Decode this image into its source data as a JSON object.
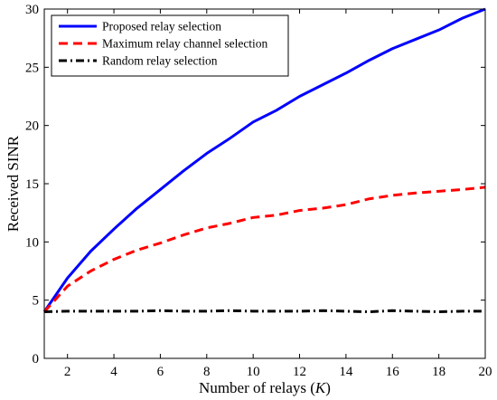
{
  "chart_data": {
    "type": "line",
    "xlabel": "Number of relays (K)",
    "xlabel_main": "Number of relays (",
    "xlabel_var": "K",
    "xlabel_close": ")",
    "ylabel": "Received SINR",
    "xlim": [
      1,
      20
    ],
    "ylim": [
      0,
      30
    ],
    "x_ticks": [
      2,
      4,
      6,
      8,
      10,
      12,
      14,
      16,
      18,
      20
    ],
    "y_ticks": [
      0,
      5,
      10,
      15,
      20,
      25,
      30
    ],
    "grid": false,
    "legend_position": "top-left",
    "x": [
      1,
      2,
      3,
      4,
      5,
      6,
      7,
      8,
      9,
      10,
      11,
      12,
      13,
      14,
      15,
      16,
      17,
      18,
      19,
      20
    ],
    "series": [
      {
        "name": "Proposed relay selection",
        "color": "#0000ff",
        "style": "solid",
        "values": [
          4.0,
          6.9,
          9.2,
          11.1,
          12.9,
          14.5,
          16.1,
          17.6,
          18.9,
          20.3,
          21.3,
          22.5,
          23.5,
          24.5,
          25.6,
          26.6,
          27.4,
          28.2,
          29.2,
          30.0
        ]
      },
      {
        "name": "Maximum relay channel selection",
        "color": "#ff0000",
        "style": "dashed",
        "values": [
          4.0,
          6.2,
          7.5,
          8.5,
          9.3,
          9.9,
          10.6,
          11.2,
          11.6,
          12.1,
          12.3,
          12.7,
          12.9,
          13.2,
          13.7,
          14.0,
          14.2,
          14.35,
          14.5,
          14.7
        ]
      },
      {
        "name": "Random relay selection",
        "color": "#000000",
        "style": "dashdot",
        "values": [
          4.0,
          4.05,
          4.05,
          4.05,
          4.05,
          4.1,
          4.05,
          4.05,
          4.1,
          4.05,
          4.05,
          4.05,
          4.1,
          4.05,
          4.0,
          4.1,
          4.05,
          4.0,
          4.05,
          4.05
        ]
      }
    ]
  }
}
